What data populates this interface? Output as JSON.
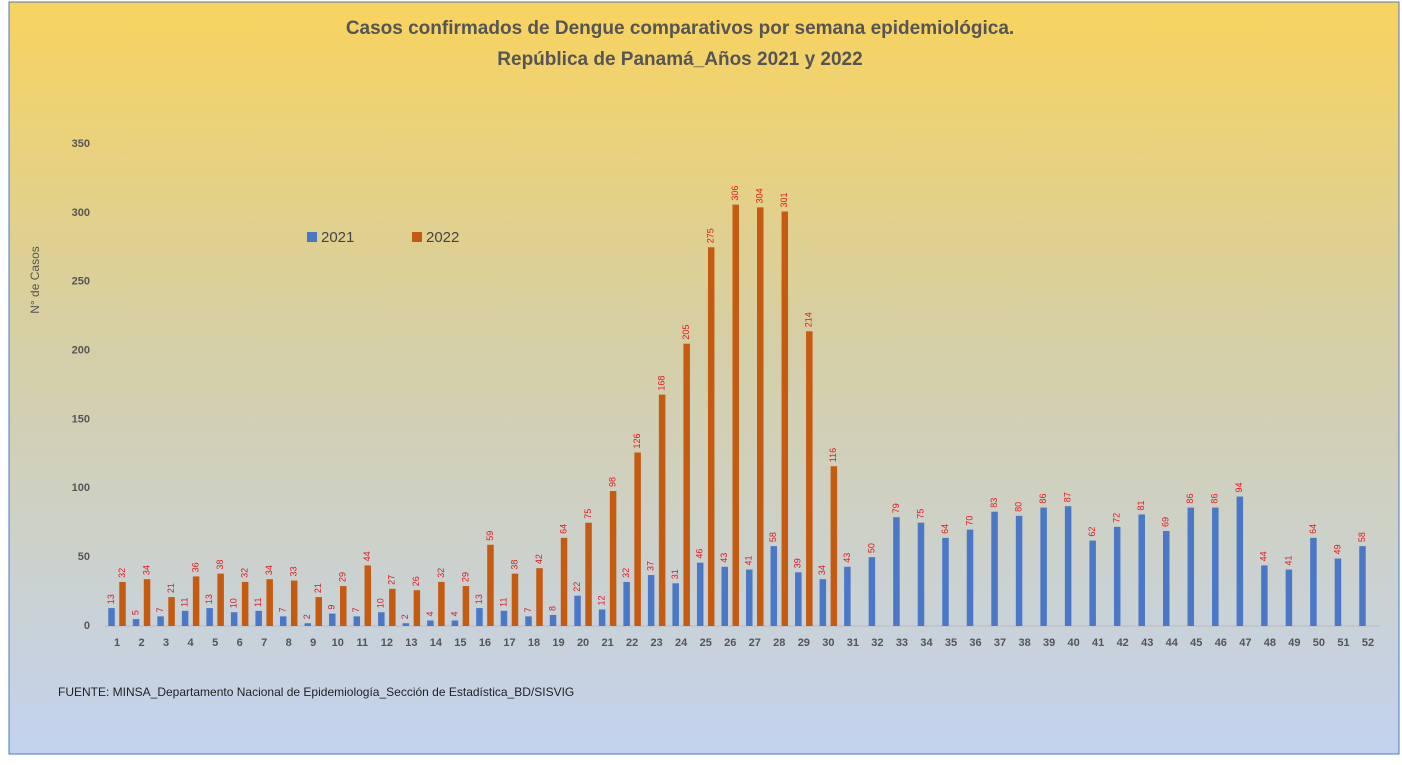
{
  "chart_data": {
    "type": "bar",
    "title": "Casos confirmados de Dengue comparativos por semana epidemiológica.",
    "subtitle": "República de Panamá_Años 2021 y 2022",
    "y_label": "N° de Casos",
    "source": "FUENTE: MINSA_Departamento Nacional de Epidemiología_Sección de Estadística_BD/SISVIG",
    "categories": [
      "1",
      "2",
      "3",
      "4",
      "5",
      "6",
      "7",
      "8",
      "9",
      "10",
      "11",
      "12",
      "13",
      "14",
      "15",
      "16",
      "17",
      "18",
      "19",
      "20",
      "21",
      "22",
      "23",
      "24",
      "25",
      "26",
      "27",
      "28",
      "29",
      "30",
      "31",
      "32",
      "33",
      "34",
      "35",
      "36",
      "37",
      "38",
      "39",
      "40",
      "41",
      "42",
      "43",
      "44",
      "45",
      "46",
      "47",
      "48",
      "49",
      "50",
      "51",
      "52"
    ],
    "series": [
      {
        "name": "2021",
        "color": "#4a78c6",
        "values": [
          13,
          5,
          7,
          11,
          13,
          10,
          11,
          7,
          2,
          9,
          7,
          10,
          2,
          4,
          4,
          13,
          11,
          7,
          8,
          22,
          12,
          32,
          37,
          31,
          46,
          43,
          41,
          58,
          39,
          34,
          43,
          50,
          79,
          75,
          64,
          70,
          83,
          80,
          86,
          87,
          62,
          72,
          81,
          69,
          86,
          86,
          94,
          44,
          41,
          64,
          49,
          58
        ]
      },
      {
        "name": "2022",
        "color": "#c55a11",
        "values": [
          32,
          34,
          21,
          36,
          38,
          32,
          34,
          33,
          21,
          29,
          44,
          27,
          26,
          32,
          29,
          59,
          38,
          42,
          64,
          75,
          98,
          126,
          168,
          205,
          275,
          306,
          304,
          301,
          214,
          116,
          null,
          null,
          null,
          null,
          null,
          null,
          null,
          null,
          null,
          null,
          null,
          null,
          null,
          null,
          null,
          null,
          null,
          null,
          null,
          null,
          null,
          null
        ]
      }
    ],
    "label_color": "#e8141c",
    "ylim": [
      0,
      350
    ],
    "yticks": [
      0,
      50,
      100,
      150,
      200,
      250,
      300,
      350
    ]
  }
}
